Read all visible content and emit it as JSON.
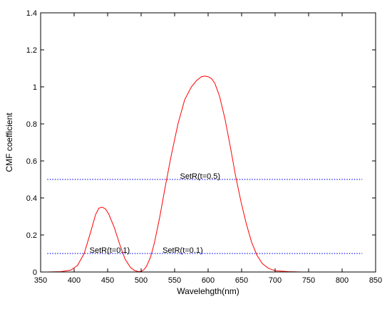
{
  "chart_data": {
    "type": "line",
    "xlabel": "Wavelehgth(nm)",
    "ylabel": "CMF coefficient",
    "xlim": [
      350,
      850
    ],
    "ylim": [
      0,
      1.4
    ],
    "xticks": [
      350,
      400,
      450,
      500,
      550,
      600,
      650,
      700,
      750,
      800,
      850
    ],
    "yticks": [
      0,
      0.2,
      0.4,
      0.6,
      0.8,
      1,
      1.2,
      1.4
    ],
    "ytick_labels": [
      "0",
      "0.2",
      "0.4",
      "0.6",
      "0.8",
      "1",
      "1.2",
      "1.4"
    ],
    "grid": false,
    "series": [
      {
        "color": "#ff0000",
        "style": "solid",
        "x": [
          360,
          380,
          395,
          405,
          415,
          425,
          432,
          437,
          442,
          447,
          452,
          460,
          468,
          476,
          484,
          490,
          496,
          500,
          504,
          508,
          514,
          520,
          528,
          536,
          545,
          555,
          565,
          575,
          583,
          590,
          595,
          600,
          605,
          610,
          617,
          625,
          633,
          641,
          649,
          657,
          665,
          673,
          681,
          690,
          700,
          720,
          740,
          760,
          780,
          800,
          830
        ],
        "y": [
          0.0,
          0.002,
          0.01,
          0.035,
          0.1,
          0.22,
          0.31,
          0.345,
          0.35,
          0.34,
          0.31,
          0.24,
          0.15,
          0.07,
          0.025,
          0.008,
          0.002,
          0.003,
          0.012,
          0.03,
          0.08,
          0.16,
          0.3,
          0.46,
          0.63,
          0.8,
          0.93,
          1.0,
          1.035,
          1.055,
          1.058,
          1.055,
          1.045,
          1.02,
          0.95,
          0.83,
          0.68,
          0.52,
          0.38,
          0.26,
          0.16,
          0.09,
          0.045,
          0.02,
          0.007,
          0.002,
          0.0,
          0.0,
          0.0,
          0.0,
          0.0
        ]
      },
      {
        "color": "#0000ff",
        "style": "dotted",
        "x": [
          360,
          830
        ],
        "y": [
          0.5,
          0.5
        ]
      },
      {
        "color": "#0000ff",
        "style": "dotted",
        "x": [
          360,
          830
        ],
        "y": [
          0.1,
          0.1
        ]
      }
    ],
    "annotations": [
      {
        "text": "SetR(t=0.5)",
        "x": 558,
        "y": 0.5
      },
      {
        "text": "SetR(t=0.1)",
        "x": 423,
        "y": 0.1
      },
      {
        "text": "SetR(t=0.1)",
        "x": 532,
        "y": 0.1
      }
    ]
  }
}
